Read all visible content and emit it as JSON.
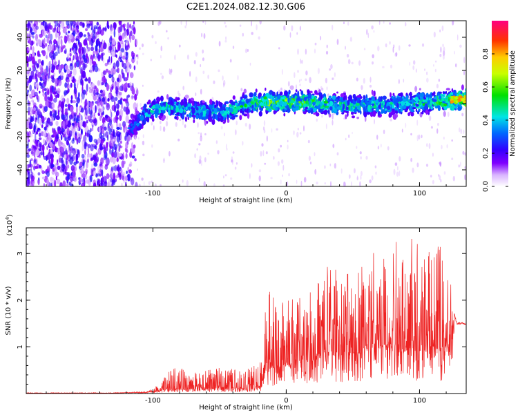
{
  "title": "C2E1.2024.082.12.30.G06",
  "colorbar": {
    "label": "Normalized spectral amplitude",
    "ticks": [
      "0.0",
      "0.2",
      "0.4",
      "0.6",
      "0.8"
    ],
    "range": [
      0,
      1
    ]
  },
  "colors": {
    "snr_line": "#ee2222",
    "axes": "#000000"
  },
  "chart_data": [
    {
      "type": "heatmap",
      "title": "",
      "xlabel": "Height of straight line (km)",
      "ylabel": "Frequency (Hz)",
      "xlim": [
        -195,
        135
      ],
      "ylim": [
        -50,
        50
      ],
      "x_ticks": [
        -100,
        0,
        100
      ],
      "x_tick_labels": [
        "-100",
        "0",
        "100"
      ],
      "y_ticks": [
        -40,
        -20,
        0,
        20,
        40
      ],
      "y_tick_labels": [
        "-40",
        "-20",
        "0",
        "20",
        "40"
      ],
      "ridge": {
        "description": "frequency of peak spectral amplitude vs height",
        "x": [
          -115,
          -105,
          -90,
          -70,
          -50,
          -30,
          -10,
          10,
          30,
          50,
          70,
          90,
          110,
          125,
          135
        ],
        "y": [
          -15,
          -5,
          -2,
          -4,
          -6,
          0,
          1,
          1,
          0,
          -1,
          -1,
          0,
          1,
          2,
          3
        ],
        "peak_amplitude": [
          0.3,
          0.4,
          0.45,
          0.4,
          0.45,
          0.5,
          0.65,
          0.55,
          0.5,
          0.45,
          0.45,
          0.45,
          0.5,
          0.6,
          0.7
        ]
      }
    },
    {
      "type": "line",
      "title": "",
      "xlabel": "Height of straight line (km)",
      "ylabel": "SNR (10 * v/v)",
      "y_multiplier": "(x10^4)",
      "xlim": [
        -195,
        135
      ],
      "ylim": [
        0,
        3.55
      ],
      "x_ticks": [
        -100,
        0,
        100
      ],
      "x_tick_labels": [
        "-100",
        "0",
        "100"
      ],
      "y_ticks": [
        1,
        2,
        3
      ],
      "y_tick_labels": [
        "1",
        "2",
        "3"
      ],
      "series": [
        {
          "envelope_x": [
            -195,
            -130,
            -105,
            -95,
            -90,
            -85,
            -80,
            -70,
            -50,
            -30,
            -20,
            -17,
            -15,
            -10,
            0,
            20,
            30,
            45,
            55,
            60,
            65,
            70,
            75,
            85,
            90,
            95,
            100,
            110,
            115,
            120,
            123,
            125,
            128,
            135
          ],
          "envelope_y": [
            0.02,
            0.02,
            0.04,
            0.2,
            0.4,
            0.55,
            0.55,
            0.45,
            0.55,
            0.55,
            0.7,
            1.3,
            2.3,
            2.1,
            2.0,
            2.2,
            2.8,
            2.6,
            2.9,
            3.1,
            3.3,
            3.1,
            3.5,
            3.2,
            3.4,
            3.5,
            3.3,
            3.1,
            3.2,
            2.9,
            2.8,
            1.8,
            1.5,
            1.5
          ],
          "baseline_y": [
            0.01,
            0.01,
            0.02,
            0.05,
            0.08,
            0.1,
            0.1,
            0.08,
            0.1,
            0.1,
            0.15,
            0.3,
            0.5,
            0.55,
            0.6,
            0.7,
            0.8,
            0.8,
            0.85,
            0.9,
            0.9,
            0.9,
            0.9,
            0.9,
            0.9,
            0.95,
            0.9,
            0.9,
            0.9,
            0.9,
            0.8,
            1.2,
            1.5,
            1.5
          ]
        }
      ]
    }
  ]
}
